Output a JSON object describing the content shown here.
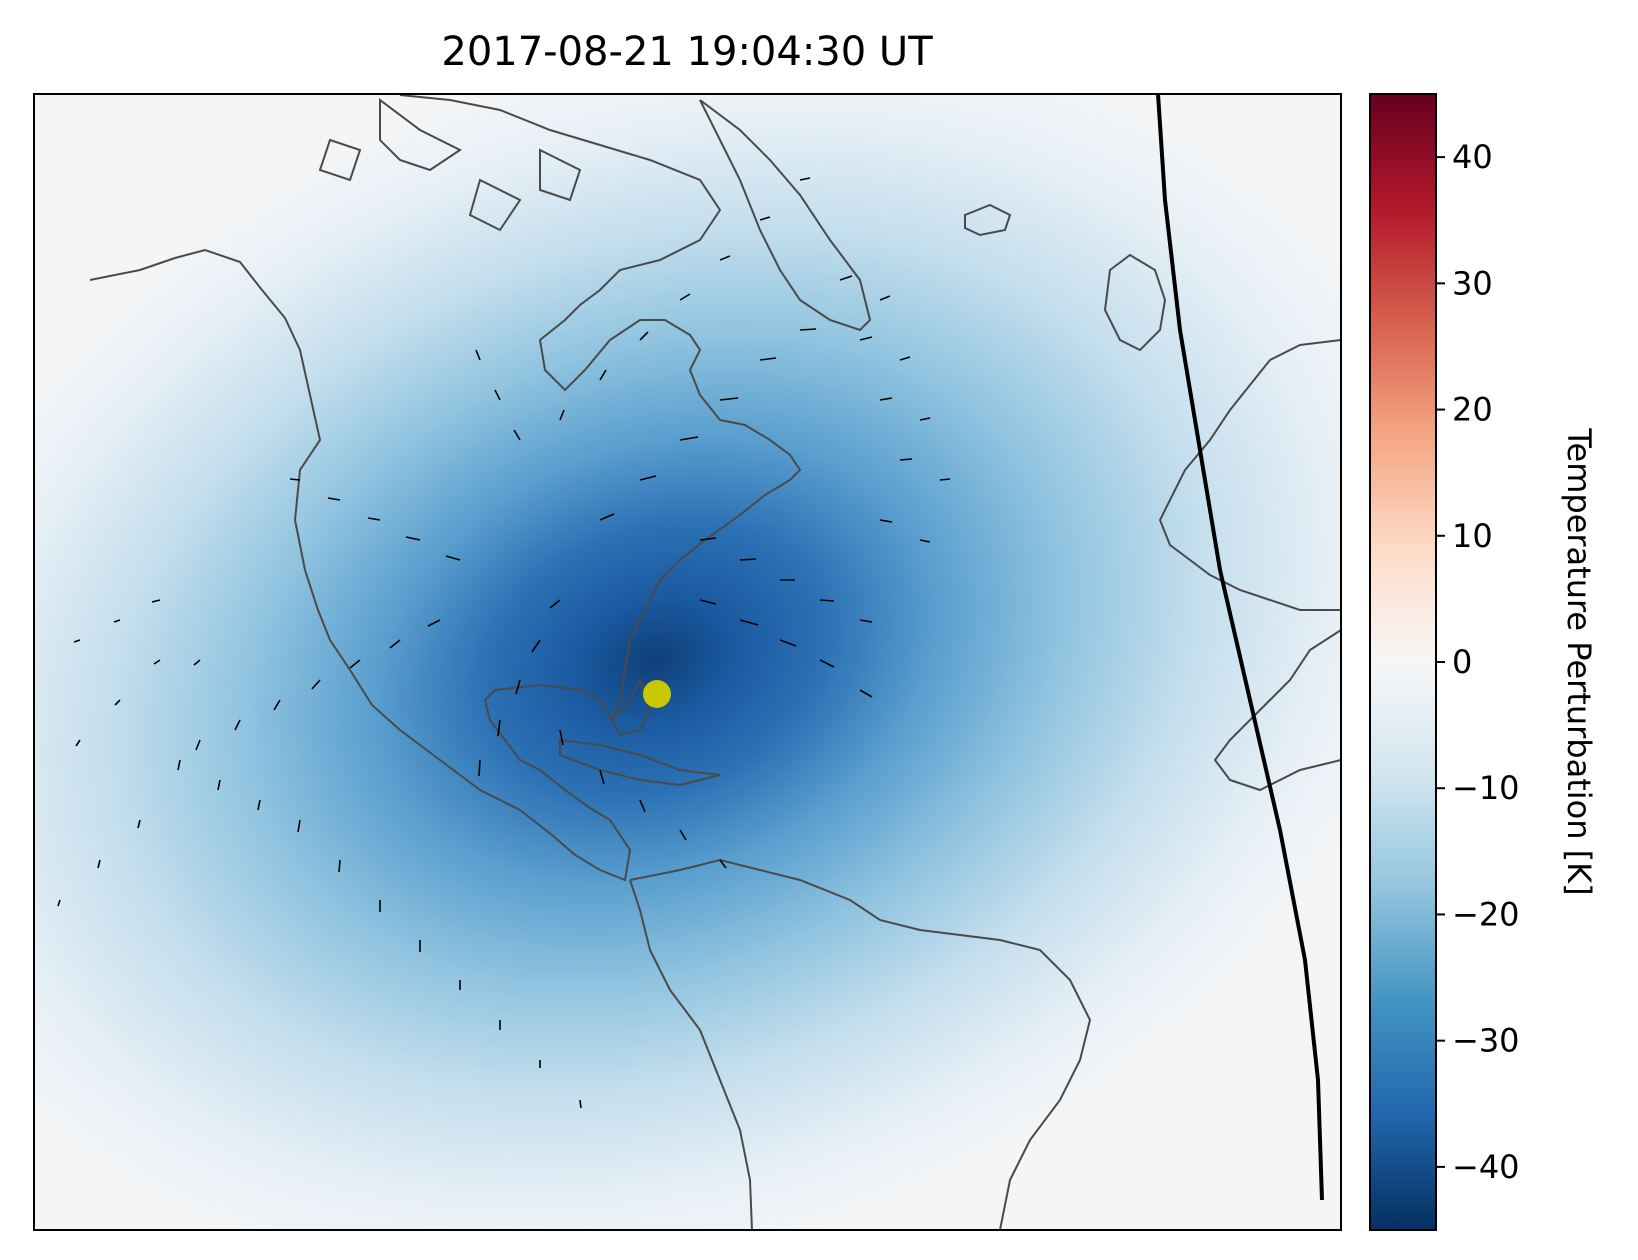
{
  "chart_data": {
    "type": "heatmap",
    "title": "2017-08-21 19:04:30 UT",
    "xlabel": "",
    "ylabel": "",
    "map": {
      "region": "North Atlantic / Americas",
      "coastline_color": "#4a4a4a",
      "features": [
        "temperature perturbation field",
        "wind perturbation vectors",
        "terminator line"
      ]
    },
    "field": {
      "name": "Temperature Perturbation",
      "center_marker": {
        "label_visible": false,
        "color": "#c8c800"
      },
      "min_value": -43,
      "max_value": 0
    },
    "colorbar": {
      "label": "Temperature Perturbation [K]",
      "range": [
        -45,
        45
      ],
      "ticks": [
        -40,
        -30,
        -20,
        -10,
        0,
        10,
        20,
        30,
        40
      ],
      "tick_labels": [
        "−40",
        "−30",
        "−20",
        "−10",
        "0",
        "10",
        "20",
        "30",
        "40"
      ],
      "colormap": "RdBu_r",
      "colors": [
        "#053061",
        "#2166ac",
        "#4393c3",
        "#92c5de",
        "#d1e5f0",
        "#f7f7f7",
        "#fddbc7",
        "#f4a582",
        "#d6604d",
        "#b2182b",
        "#67001f"
      ]
    },
    "grid": false,
    "legend": "none"
  }
}
